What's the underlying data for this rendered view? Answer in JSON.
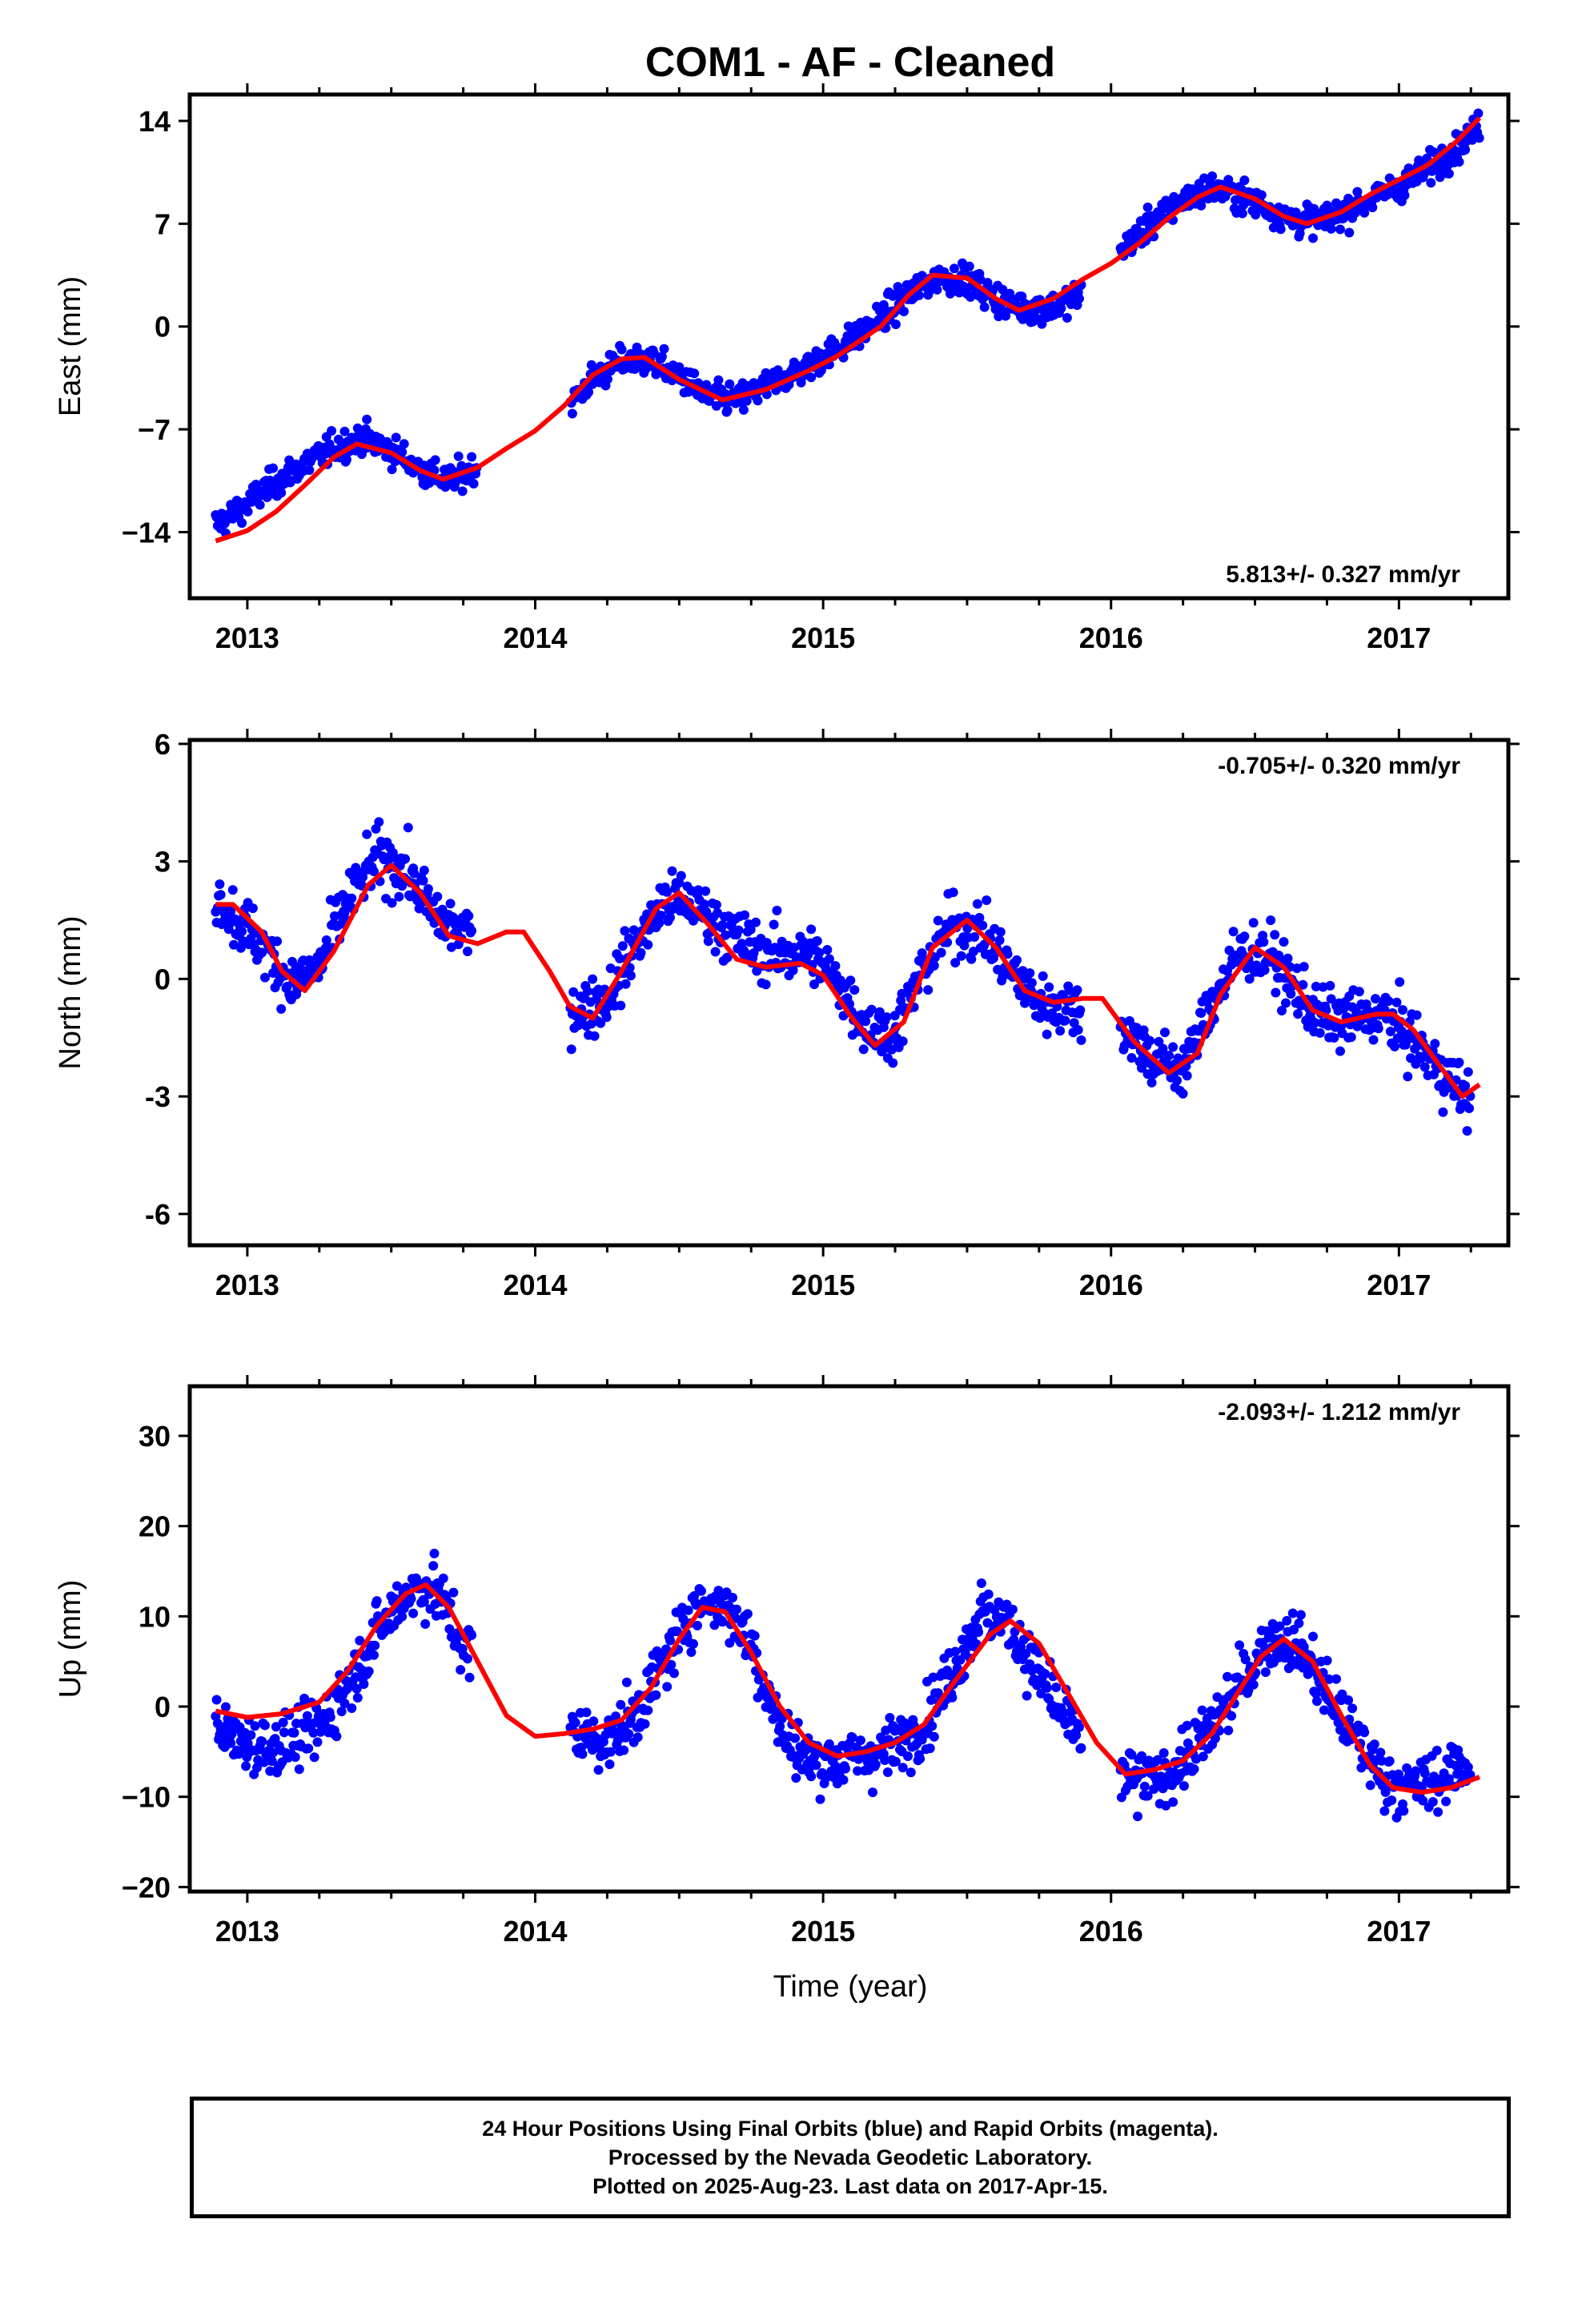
{
  "title": "COM1  - AF - Cleaned",
  "xlabel": "Time (year)",
  "footer": [
    "24 Hour Positions Using Final Orbits (blue) and Rapid Orbits (magenta).",
    "Processed by the Nevada Geodetic Laboratory.",
    "Plotted on 2025-Aug-23. Last data on 2017-Apr-15."
  ],
  "colors": {
    "points": "#0000ff",
    "fit": "#ff0000",
    "frame": "#000000"
  },
  "chart_data": [
    {
      "type": "scatter",
      "ylabel": "East (mm)",
      "rate_text": "5.813+/- 0.327 mm/yr",
      "xlim": [
        2012.8,
        2017.38
      ],
      "ylim": [
        -18.5,
        15.8
      ],
      "xticks": [
        2013,
        2014,
        2015,
        2016,
        2017
      ],
      "yticks": [
        -14,
        -7,
        0,
        7,
        14
      ],
      "ytick_labels": [
        "−14",
        "−7",
        "0",
        "7",
        "14"
      ],
      "series": [
        {
          "kind": "points",
          "x": [
            2012.89,
            2012.95,
            2013.0,
            2013.05,
            2013.1,
            2013.2,
            2013.3,
            2013.4,
            2013.5,
            2013.6,
            2013.7,
            2013.75,
            2014.1,
            2014.2,
            2014.3,
            2014.4,
            2014.5,
            2014.6,
            2014.7,
            2014.8,
            2014.9,
            2015.0,
            2015.1,
            2015.2,
            2015.3,
            2015.4,
            2015.5,
            2015.6,
            2015.7,
            2015.8,
            2015.88,
            2016.05,
            2016.15,
            2016.25,
            2016.35,
            2016.45,
            2016.55,
            2016.65,
            2016.75,
            2016.85,
            2016.95,
            2017.05,
            2017.15,
            2017.25,
            2017.28
          ],
          "y": [
            -13.5,
            -12.8,
            -12.1,
            -11.3,
            -10.6,
            -9.3,
            -8.3,
            -7.6,
            -8.4,
            -9.7,
            -10.5,
            -10.1,
            -5.7,
            -3.6,
            -2.4,
            -2.3,
            -3.4,
            -4.8,
            -5.0,
            -4.1,
            -3.1,
            -2.1,
            -0.9,
            0.6,
            2.2,
            3.4,
            3.2,
            1.9,
            1.2,
            1.3,
            2.1,
            5.5,
            7.2,
            8.6,
            9.4,
            8.9,
            8.0,
            7.2,
            7.3,
            8.2,
            9.1,
            10.1,
            11.4,
            13.0,
            13.6
          ]
        },
        {
          "kind": "fit",
          "x": [
            2012.89,
            2013.0,
            2013.1,
            2013.2,
            2013.3,
            2013.38,
            2013.5,
            2013.6,
            2013.68,
            2013.8,
            2013.9,
            2014.0,
            2014.1,
            2014.2,
            2014.3,
            2014.38,
            2014.5,
            2014.65,
            2014.8,
            2014.95,
            2015.05,
            2015.2,
            2015.3,
            2015.38,
            2015.5,
            2015.6,
            2015.68,
            2015.8,
            2015.9,
            2016.0,
            2016.1,
            2016.2,
            2016.3,
            2016.38,
            2016.5,
            2016.6,
            2016.68,
            2016.8,
            2016.9,
            2017.0,
            2017.1,
            2017.2,
            2017.28
          ],
          "y": [
            -14.6,
            -13.9,
            -12.6,
            -10.8,
            -8.9,
            -8.0,
            -8.6,
            -9.8,
            -10.4,
            -9.6,
            -8.3,
            -7.1,
            -5.4,
            -3.3,
            -2.2,
            -2.1,
            -3.6,
            -5.0,
            -4.3,
            -3.0,
            -2.0,
            0.0,
            2.2,
            3.5,
            3.3,
            1.9,
            1.1,
            1.9,
            3.2,
            4.3,
            5.7,
            7.4,
            8.8,
            9.5,
            8.7,
            7.5,
            7.0,
            7.8,
            9.0,
            10.0,
            11.0,
            12.6,
            14.2
          ]
        }
      ]
    },
    {
      "type": "scatter",
      "ylabel": "North (mm)",
      "rate_text": "-0.705+/- 0.320 mm/yr",
      "xlim": [
        2012.8,
        2017.38
      ],
      "ylim": [
        -6.8,
        6.1
      ],
      "xticks": [
        2013,
        2014,
        2015,
        2016,
        2017
      ],
      "yticks": [
        -6,
        -3,
        0,
        3,
        6
      ],
      "ytick_labels": [
        "-6",
        "-3",
        "0",
        "3",
        "6"
      ],
      "series": [
        {
          "kind": "points",
          "x": [
            2012.89,
            2012.95,
            2013.05,
            2013.15,
            2013.25,
            2013.35,
            2013.45,
            2013.55,
            2013.65,
            2013.75,
            2014.15,
            2014.25,
            2014.35,
            2014.45,
            2014.55,
            2014.65,
            2014.75,
            2014.85,
            2014.95,
            2015.05,
            2015.15,
            2015.25,
            2015.35,
            2015.45,
            2015.55,
            2015.65,
            2015.75,
            2015.85,
            2016.05,
            2016.15,
            2016.25,
            2016.35,
            2016.45,
            2016.55,
            2016.65,
            2016.75,
            2016.85,
            2016.95,
            2017.05,
            2017.15,
            2017.25
          ],
          "y": [
            2.2,
            1.6,
            0.9,
            -0.1,
            0.3,
            2.0,
            3.1,
            2.8,
            1.6,
            1.2,
            -0.8,
            -0.5,
            0.9,
            2.0,
            1.9,
            1.3,
            0.8,
            0.6,
            0.7,
            -0.1,
            -1.2,
            -1.4,
            0.3,
            1.4,
            1.2,
            0.2,
            -0.6,
            -0.7,
            -1.3,
            -2.1,
            -2.3,
            -0.6,
            0.7,
            0.6,
            -0.4,
            -1.1,
            -1.0,
            -0.9,
            -1.6,
            -2.4,
            -3.1
          ]
        },
        {
          "kind": "fit",
          "x": [
            2012.89,
            2012.95,
            2013.05,
            2013.12,
            2013.2,
            2013.3,
            2013.42,
            2013.5,
            2013.6,
            2013.7,
            2013.8,
            2013.9,
            2013.96,
            2014.05,
            2014.12,
            2014.2,
            2014.3,
            2014.42,
            2014.5,
            2014.6,
            2014.7,
            2014.8,
            2014.92,
            2015.0,
            2015.1,
            2015.18,
            2015.28,
            2015.38,
            2015.5,
            2015.6,
            2015.7,
            2015.8,
            2015.9,
            2015.97,
            2016.08,
            2016.2,
            2016.3,
            2016.38,
            2016.5,
            2016.6,
            2016.7,
            2016.8,
            2016.92,
            2016.98,
            2017.05,
            2017.15,
            2017.22,
            2017.28
          ],
          "y": [
            1.9,
            1.9,
            1.2,
            0.2,
            -0.3,
            0.7,
            2.4,
            2.9,
            2.2,
            1.1,
            0.9,
            1.2,
            1.2,
            0.2,
            -0.7,
            -1.0,
            0.2,
            1.8,
            2.2,
            1.4,
            0.5,
            0.3,
            0.4,
            0.1,
            -1.0,
            -1.7,
            -1.1,
            0.8,
            1.5,
            0.8,
            -0.3,
            -0.6,
            -0.5,
            -0.5,
            -1.6,
            -2.4,
            -1.9,
            -0.4,
            0.8,
            0.3,
            -0.8,
            -1.1,
            -0.9,
            -0.9,
            -1.3,
            -2.3,
            -3.0,
            -2.7
          ]
        }
      ]
    },
    {
      "type": "scatter",
      "ylabel": "Up (mm)",
      "rate_text": "-2.093+/- 1.212 mm/yr",
      "xlim": [
        2012.8,
        2017.38
      ],
      "ylim": [
        -20.5,
        35.5
      ],
      "xticks": [
        2013,
        2014,
        2015,
        2016,
        2017
      ],
      "yticks": [
        -20,
        -10,
        0,
        10,
        20,
        30
      ],
      "ytick_labels": [
        "−20",
        "−10",
        "0",
        "10",
        "20",
        "30"
      ],
      "series": [
        {
          "kind": "points",
          "x": [
            2012.89,
            2012.95,
            2013.05,
            2013.15,
            2013.25,
            2013.35,
            2013.45,
            2013.55,
            2013.65,
            2013.75,
            2014.15,
            2014.25,
            2014.35,
            2014.45,
            2014.55,
            2014.65,
            2014.75,
            2014.85,
            2014.95,
            2015.05,
            2015.15,
            2015.25,
            2015.35,
            2015.45,
            2015.55,
            2015.65,
            2015.75,
            2015.85,
            2016.05,
            2016.15,
            2016.25,
            2016.35,
            2016.45,
            2016.55,
            2016.65,
            2016.75,
            2016.85,
            2016.95,
            2017.05,
            2017.15,
            2017.25
          ],
          "y": [
            -2.0,
            -3.5,
            -4.5,
            -4.0,
            -2.5,
            2.5,
            8.0,
            12.5,
            13.5,
            6.5,
            -3.0,
            -4.0,
            -1.0,
            5.0,
            11.0,
            11.5,
            7.0,
            -2.5,
            -6.0,
            -6.0,
            -5.5,
            -4.5,
            -2.0,
            4.0,
            10.5,
            9.0,
            3.5,
            -2.0,
            -8.0,
            -8.5,
            -6.0,
            -2.5,
            2.5,
            7.5,
            7.0,
            1.5,
            -3.5,
            -8.0,
            -9.0,
            -8.0,
            -6.0
          ]
        },
        {
          "kind": "fit",
          "x": [
            2012.89,
            2013.0,
            2013.12,
            2013.25,
            2013.35,
            2013.45,
            2013.55,
            2013.62,
            2013.7,
            2013.8,
            2013.9,
            2014.0,
            2014.1,
            2014.2,
            2014.3,
            2014.4,
            2014.5,
            2014.58,
            2014.66,
            2014.75,
            2014.85,
            2014.95,
            2015.05,
            2015.15,
            2015.25,
            2015.35,
            2015.45,
            2015.58,
            2015.65,
            2015.75,
            2015.85,
            2015.95,
            2016.05,
            2016.15,
            2016.25,
            2016.35,
            2016.45,
            2016.52,
            2016.6,
            2016.7,
            2016.8,
            2016.9,
            2016.98,
            2017.08,
            2017.18,
            2017.28
          ],
          "y": [
            -0.5,
            -1.2,
            -0.8,
            0.5,
            4.0,
            9.0,
            12.5,
            13.5,
            11.0,
            5.0,
            -1.0,
            -3.3,
            -3.0,
            -2.5,
            -1.5,
            2.0,
            7.5,
            11.0,
            10.5,
            6.0,
            0.0,
            -4.0,
            -5.5,
            -5.0,
            -4.0,
            -2.0,
            2.5,
            8.0,
            9.5,
            7.0,
            1.5,
            -4.0,
            -7.5,
            -7.0,
            -6.0,
            -3.0,
            2.0,
            5.5,
            7.5,
            5.0,
            -1.0,
            -6.5,
            -9.0,
            -9.5,
            -9.0,
            -7.8
          ]
        }
      ]
    }
  ]
}
